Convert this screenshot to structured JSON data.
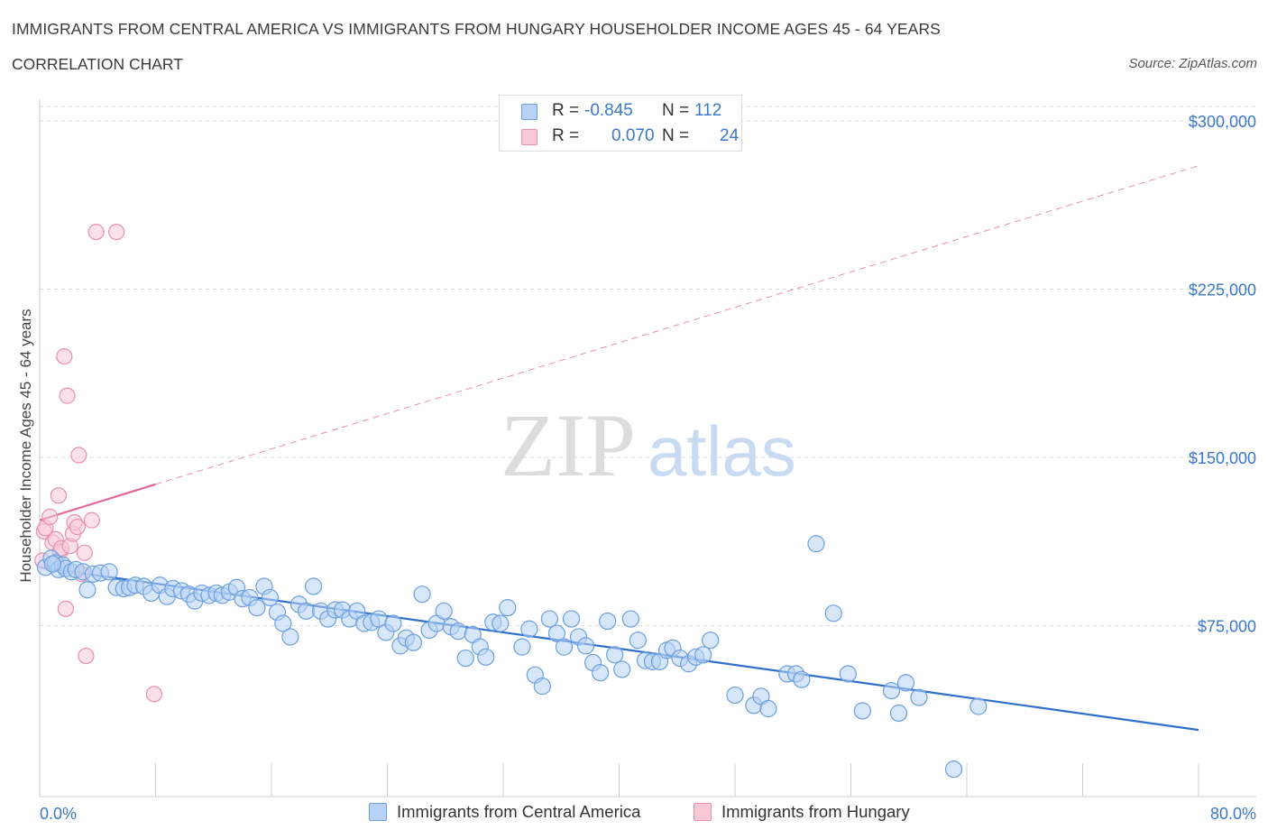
{
  "title": "IMMIGRANTS FROM CENTRAL AMERICA VS IMMIGRANTS FROM HUNGARY HOUSEHOLDER INCOME AGES 45 - 64 YEARS",
  "subtitle": "CORRELATION CHART",
  "source": "Source: ZipAtlas.com",
  "watermark": {
    "zip": "ZIP",
    "atlas": "atlas"
  },
  "legend": {
    "series1": {
      "r_label": "R =",
      "r_value": "-0.845",
      "n_label": "N =",
      "n_value": "112"
    },
    "series2": {
      "r_label": "R =",
      "r_value": "0.070",
      "n_label": "N =",
      "n_value": "24"
    }
  },
  "bottom_legend": {
    "series1": "Immigrants from Central America",
    "series2": "Immigrants from Hungary"
  },
  "colors": {
    "series1_fill": "#b7d2f4",
    "series1_stroke": "#6a9fe0",
    "series1_line": "#2f6fcc",
    "series2_fill": "#f9c9d8",
    "series2_stroke": "#ea8fb0",
    "series2_line": "#e2679a",
    "tick_text": "#3b78c9",
    "grid": "#d9d9d9"
  },
  "chart_data": {
    "type": "scatter",
    "xlabel": "",
    "ylabel": "Householder Income Ages 45 - 64 years",
    "x_unit": "%",
    "xlim": [
      0,
      80
    ],
    "ylim": [
      0,
      300000
    ],
    "x_tick_labels": [
      "0.0%",
      "80.0%"
    ],
    "y_ticks": [
      75000,
      150000,
      225000,
      300000
    ],
    "y_tick_labels": [
      "$75,000",
      "$150,000",
      "$225,000",
      "$300,000"
    ],
    "grid": "horizontal dashed",
    "series": [
      {
        "name": "Immigrants from Central America",
        "r": -0.845,
        "n": 112,
        "trend": {
          "x": [
            0,
            80
          ],
          "y": [
            101000,
            28500
          ]
        },
        "points": [
          [
            0.4,
            101000
          ],
          [
            0.8,
            105000
          ],
          [
            1.1,
            103000
          ],
          [
            1.3,
            100000
          ],
          [
            1.6,
            102000
          ],
          [
            1.8,
            100500
          ],
          [
            2.2,
            99000
          ],
          [
            2.5,
            100000
          ],
          [
            3.0,
            99000
          ],
          [
            3.3,
            91000
          ],
          [
            3.7,
            98000
          ],
          [
            4.2,
            98500
          ],
          [
            4.8,
            99000
          ],
          [
            5.3,
            92000
          ],
          [
            5.8,
            91500
          ],
          [
            6.2,
            92000
          ],
          [
            6.6,
            93000
          ],
          [
            7.2,
            92500
          ],
          [
            7.7,
            89500
          ],
          [
            8.3,
            93000
          ],
          [
            8.8,
            88000
          ],
          [
            9.2,
            91500
          ],
          [
            9.8,
            90500
          ],
          [
            10.3,
            89000
          ],
          [
            10.7,
            86000
          ],
          [
            11.2,
            89500
          ],
          [
            11.7,
            88500
          ],
          [
            12.2,
            89500
          ],
          [
            12.6,
            88500
          ],
          [
            13.1,
            90000
          ],
          [
            13.6,
            92000
          ],
          [
            14.0,
            87000
          ],
          [
            14.5,
            87500
          ],
          [
            15.0,
            83000
          ],
          [
            15.5,
            92500
          ],
          [
            15.9,
            87500
          ],
          [
            16.4,
            81000
          ],
          [
            16.8,
            76000
          ],
          [
            17.3,
            70000
          ],
          [
            17.9,
            84500
          ],
          [
            18.4,
            81500
          ],
          [
            18.9,
            92500
          ],
          [
            19.4,
            81500
          ],
          [
            19.9,
            78000
          ],
          [
            20.4,
            82000
          ],
          [
            20.9,
            82000
          ],
          [
            21.4,
            78000
          ],
          [
            21.9,
            81500
          ],
          [
            22.4,
            76000
          ],
          [
            22.9,
            76500
          ],
          [
            23.4,
            78000
          ],
          [
            23.9,
            72000
          ],
          [
            24.4,
            76000
          ],
          [
            24.9,
            66000
          ],
          [
            25.3,
            69500
          ],
          [
            25.8,
            67500
          ],
          [
            26.4,
            89000
          ],
          [
            26.9,
            73000
          ],
          [
            27.4,
            76000
          ],
          [
            27.9,
            81500
          ],
          [
            28.4,
            74500
          ],
          [
            28.9,
            72500
          ],
          [
            29.4,
            60500
          ],
          [
            29.9,
            71000
          ],
          [
            30.4,
            65500
          ],
          [
            30.8,
            61000
          ],
          [
            31.3,
            76500
          ],
          [
            31.8,
            76000
          ],
          [
            32.3,
            83000
          ],
          [
            33.3,
            65500
          ],
          [
            33.8,
            73500
          ],
          [
            34.2,
            53000
          ],
          [
            34.7,
            48000
          ],
          [
            35.2,
            78000
          ],
          [
            35.7,
            71500
          ],
          [
            36.2,
            65500
          ],
          [
            36.7,
            78000
          ],
          [
            37.2,
            70000
          ],
          [
            37.7,
            66000
          ],
          [
            38.2,
            58500
          ],
          [
            38.7,
            54000
          ],
          [
            39.2,
            77000
          ],
          [
            39.7,
            62000
          ],
          [
            40.2,
            55500
          ],
          [
            40.8,
            78000
          ],
          [
            41.3,
            68500
          ],
          [
            41.8,
            59500
          ],
          [
            42.3,
            59000
          ],
          [
            42.8,
            59000
          ],
          [
            43.3,
            64000
          ],
          [
            43.7,
            65000
          ],
          [
            44.2,
            60500
          ],
          [
            44.8,
            58000
          ],
          [
            45.3,
            61000
          ],
          [
            45.8,
            62000
          ],
          [
            46.3,
            68500
          ],
          [
            48.0,
            44000
          ],
          [
            49.3,
            39500
          ],
          [
            49.8,
            43500
          ],
          [
            50.3,
            38000
          ],
          [
            51.6,
            53500
          ],
          [
            52.2,
            53500
          ],
          [
            52.6,
            51000
          ],
          [
            53.6,
            111500
          ],
          [
            54.8,
            80500
          ],
          [
            55.8,
            53500
          ],
          [
            56.8,
            37000
          ],
          [
            58.8,
            46000
          ],
          [
            59.3,
            36000
          ],
          [
            59.8,
            49500
          ],
          [
            60.7,
            43000
          ],
          [
            63.1,
            11000
          ],
          [
            64.8,
            39000
          ],
          [
            0.9,
            102500
          ]
        ]
      },
      {
        "name": "Immigrants from Hungary",
        "r": 0.07,
        "n": 24,
        "trend": {
          "x": [
            0,
            8
          ],
          "y": [
            122000,
            138000
          ]
        },
        "trend_extension": {
          "x": [
            8,
            80
          ],
          "y": [
            138000,
            280000
          ]
        },
        "points": [
          [
            0.2,
            104000
          ],
          [
            0.3,
            117000
          ],
          [
            0.4,
            118500
          ],
          [
            0.7,
            123500
          ],
          [
            0.9,
            112000
          ],
          [
            1.1,
            113500
          ],
          [
            1.4,
            108000
          ],
          [
            1.3,
            133000
          ],
          [
            1.5,
            109500
          ],
          [
            1.7,
            195000
          ],
          [
            1.8,
            82500
          ],
          [
            1.9,
            177500
          ],
          [
            2.1,
            110500
          ],
          [
            2.3,
            116000
          ],
          [
            2.4,
            121000
          ],
          [
            2.6,
            119000
          ],
          [
            2.7,
            151000
          ],
          [
            2.9,
            98000
          ],
          [
            3.1,
            107500
          ],
          [
            3.2,
            61500
          ],
          [
            3.6,
            122000
          ],
          [
            3.9,
            250500
          ],
          [
            5.3,
            250500
          ],
          [
            7.9,
            44500
          ]
        ]
      }
    ]
  }
}
